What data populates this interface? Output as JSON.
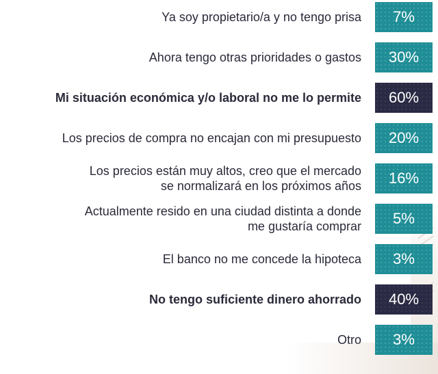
{
  "chart_data": {
    "type": "table",
    "title": "",
    "xlabel": "",
    "ylabel": "",
    "unit": "%",
    "colors": {
      "default": "#1f8e96",
      "highlight": "#2a2a44",
      "text": "#2a2a3a"
    },
    "rows": [
      {
        "label": "Ya soy propietario/a y no tengo prisa",
        "value": 7,
        "value_label": "7%",
        "highlight": false
      },
      {
        "label": "Ahora tengo otras prioridades o gastos",
        "value": 30,
        "value_label": "30%",
        "highlight": false
      },
      {
        "label": "Mi situación económica y/o laboral no me lo permite",
        "value": 60,
        "value_label": "60%",
        "highlight": true
      },
      {
        "label": "Los precios de compra no encajan con mi presupuesto",
        "value": 20,
        "value_label": "20%",
        "highlight": false
      },
      {
        "label": "Los precios están muy altos, creo que el mercado\nse normalizará en los próximos años",
        "value": 16,
        "value_label": "16%",
        "highlight": false
      },
      {
        "label": "Actualmente resido en una ciudad distinta a donde\nme gustaría comprar",
        "value": 5,
        "value_label": "5%",
        "highlight": false
      },
      {
        "label": "El banco no me concede la hipoteca",
        "value": 3,
        "value_label": "3%",
        "highlight": false
      },
      {
        "label": "No tengo suficiente dinero ahorrado",
        "value": 40,
        "value_label": "40%",
        "highlight": true
      },
      {
        "label": "Otro",
        "value": 3,
        "value_label": "3%",
        "highlight": false
      }
    ]
  }
}
